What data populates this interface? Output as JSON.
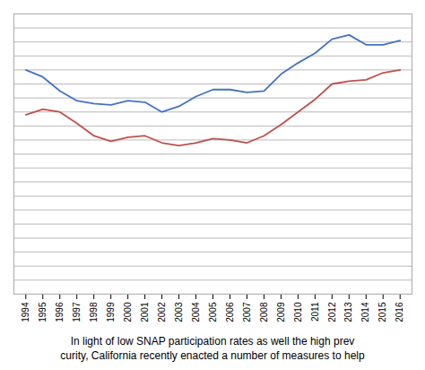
{
  "chart_data": {
    "type": "line",
    "x": [
      1994,
      1995,
      1996,
      1997,
      1998,
      1999,
      2000,
      2001,
      2002,
      2003,
      2004,
      2005,
      2006,
      2007,
      2008,
      2009,
      2010,
      2011,
      2012,
      2013,
      2014,
      2015,
      2016
    ],
    "series": [
      {
        "color": "#4472C4",
        "values": [
          160,
          155,
          145,
          138,
          136,
          135,
          138,
          137,
          130,
          134,
          141,
          146,
          146,
          144,
          145,
          157,
          165,
          172,
          182,
          185,
          178,
          178,
          181
        ]
      },
      {
        "color": "#C0504D",
        "values": [
          128,
          132,
          130,
          122,
          113,
          109,
          112,
          113,
          108,
          106,
          108,
          111,
          110,
          108,
          113,
          121,
          130,
          139,
          150,
          152,
          153,
          158,
          160
        ]
      }
    ],
    "xlim": [
      1993.3,
      2016.7
    ],
    "xticks": [
      1994,
      1995,
      1996,
      1997,
      1998,
      1999,
      2000,
      2001,
      2002,
      2003,
      2004,
      2005,
      2006,
      2007,
      2008,
      2009,
      2010,
      2011,
      2012,
      2013,
      2014,
      2015,
      2016
    ],
    "ylim": [
      0,
      200
    ],
    "yticks": [
      0,
      10,
      20,
      30,
      40,
      50,
      60,
      70,
      80,
      90,
      100,
      110,
      120,
      130,
      140,
      150,
      160,
      170,
      180,
      190,
      200
    ],
    "grid": true,
    "tick_labels": "x",
    "annotations": [
      "In light of low SNAP participation rates as well the high prev",
      "curity, California recently enacted a number of measures to help"
    ]
  }
}
